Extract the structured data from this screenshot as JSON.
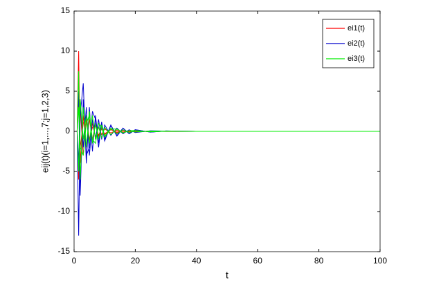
{
  "chart_data": {
    "type": "line",
    "xlabel": "t",
    "ylabel": "eij(t)(i=1,...,7;j=1,2,3)",
    "x": [
      1,
      1.5,
      2,
      3,
      4,
      5,
      6,
      7,
      8,
      9,
      10,
      12,
      14,
      16,
      18,
      20,
      25,
      30,
      40,
      100
    ],
    "series": [
      {
        "name": "ei1(t)",
        "color": "#ff0000",
        "values": [
          [
            0,
            10,
            -4,
            2,
            -2,
            1.5,
            -1,
            0.8,
            -0.6,
            0.5,
            -0.4,
            0.3,
            -0.2,
            0.15,
            -0.1,
            0.08,
            -0.05,
            0.02,
            0,
            0
          ],
          [
            0,
            -6,
            3,
            -3,
            1.5,
            -1.2,
            1,
            -0.7,
            0.5,
            -0.4,
            0.3,
            -0.2,
            0.15,
            -0.1,
            0.08,
            -0.05,
            0.03,
            -0.01,
            0,
            0
          ],
          [
            0,
            4,
            -2,
            1,
            2,
            -1,
            0.5,
            0.8,
            -0.5,
            0.3,
            -0.3,
            0.2,
            -0.1,
            0.1,
            -0.05,
            0.03,
            -0.02,
            0.01,
            0,
            0
          ]
        ]
      },
      {
        "name": "ei2(t)",
        "color": "#0000cc",
        "values": [
          [
            0,
            -13,
            2,
            6,
            -4,
            3,
            -2.5,
            2,
            -1.5,
            1.2,
            -1,
            0.7,
            -0.5,
            0.4,
            -0.3,
            0.2,
            -0.1,
            0.05,
            0,
            0
          ],
          [
            0,
            5,
            -8,
            4,
            -3,
            -2,
            2.5,
            1.5,
            -2,
            1,
            -1.2,
            0.8,
            -0.6,
            0.4,
            -0.3,
            0.2,
            -0.1,
            0.05,
            0,
            0
          ],
          [
            0,
            -4,
            4,
            -2,
            3,
            -3,
            1.5,
            -1,
            1.5,
            -1,
            0.8,
            -0.5,
            0.4,
            -0.3,
            0.2,
            -0.15,
            0.08,
            0.03,
            0,
            0
          ]
        ]
      },
      {
        "name": "ei3(t)",
        "color": "#00ee00",
        "values": [
          [
            0,
            7.5,
            -6,
            3,
            -2,
            2.5,
            -1.5,
            1,
            -1,
            0.8,
            -0.6,
            0.4,
            -0.3,
            0.2,
            -0.15,
            0.1,
            -0.05,
            0.02,
            0,
            0
          ],
          [
            0,
            -5,
            4,
            -1,
            2,
            -1.5,
            2,
            -1,
            0.6,
            -0.8,
            0.5,
            -0.4,
            0.3,
            -0.2,
            0.1,
            -0.08,
            0.04,
            0.02,
            0,
            0
          ],
          [
            0,
            3,
            -2,
            -3,
            1,
            2,
            -1,
            -1.5,
            1,
            0.5,
            -0.7,
            0.3,
            0.3,
            -0.2,
            0.1,
            0.1,
            -0.05,
            0.02,
            0,
            0
          ]
        ]
      }
    ],
    "xlim": [
      0,
      100
    ],
    "xticks": [
      0,
      20,
      40,
      60,
      80,
      100
    ],
    "ylim": [
      -15,
      15
    ],
    "yticks": [
      -15,
      -10,
      -5,
      0,
      5,
      10,
      15
    ],
    "legend": "upper right"
  }
}
